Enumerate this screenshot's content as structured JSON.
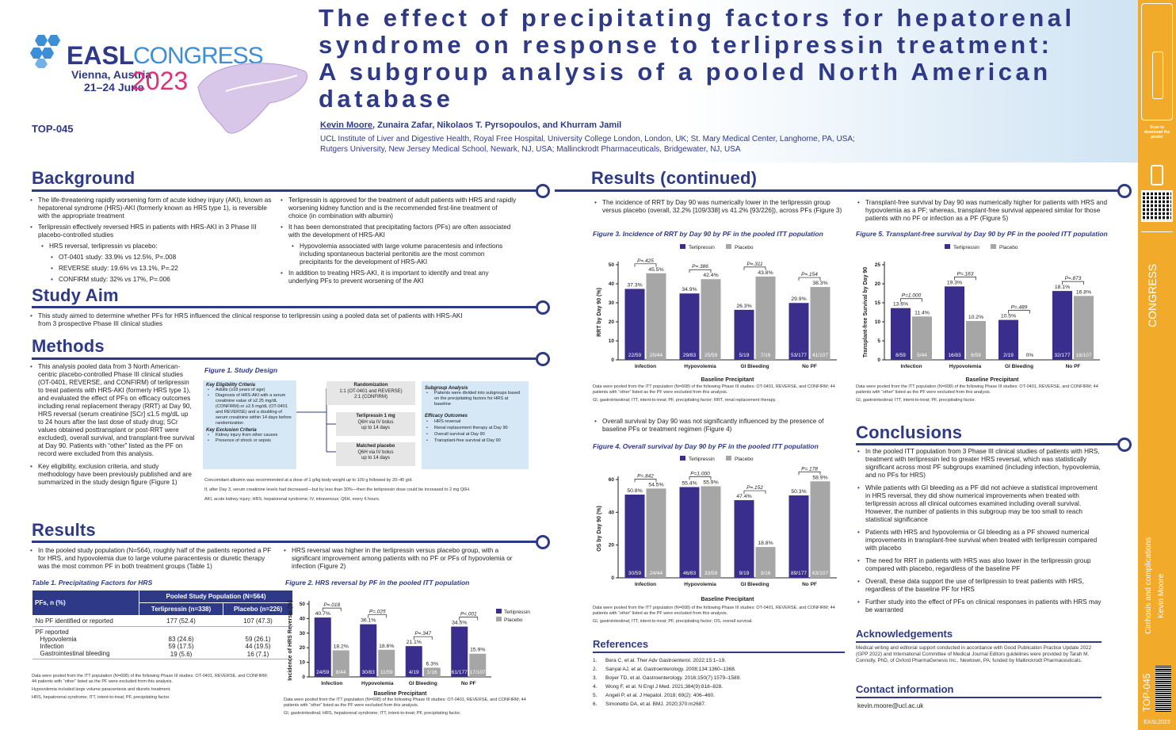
{
  "logo": {
    "brand": "EASL",
    "congress": "CONGRESS",
    "location": "Vienna, Austria",
    "dates": "21–24 June",
    "year": "2023"
  },
  "poster_id": "TOP-045",
  "title": "The effect of precipitating factors for hepatorenal syndrome on response to terlipressin treatment: A subgroup analysis of a pooled North American database",
  "authors": {
    "presenting": "Kevin Moore",
    "rest": ", Zunaira Zafar, Nikolaos T. Pyrsopoulos, and Khurram Jamil",
    "affil1": "UCL Institute of Liver and Digestive Health, Royal Free Hospital, University College London, London, UK; St. Mary Medical Center, Langhorne, PA, USA;",
    "affil2": "Rutgers University, New Jersey Medical School, Newark, NJ, USA; Mallinckrodt Pharmaceuticals, Bridgewater, NJ, USA"
  },
  "sections": {
    "background": "Background",
    "study_aim": "Study Aim",
    "methods": "Methods",
    "results": "Results",
    "results_cont": "Results (continued)",
    "conclusions": "Conclusions",
    "references": "References",
    "acknowledgements": "Acknowledgements",
    "contact": "Contact information"
  },
  "background": {
    "left": [
      "The life-threatening rapidly worsening form of acute kidney injury (AKI), known as hepatorenal syndrome (HRS)-AKI (formerly known as HRS type 1), is reversible with the appropriate treatment",
      "Terlipressin effectively reversed HRS in patients with HRS-AKI in 3 Phase III placebo-controlled studies",
      "HRS reversal, terlipressin vs placebo:",
      "OT-0401 study: 33.9% vs 12.5%, P=.008",
      "REVERSE study: 19.6% vs 13.1%, P=.22",
      "CONFIRM study: 32% vs 17%, P=.006"
    ],
    "right": [
      "Terlipressin is approved for the treatment of adult patients with HRS and rapidly worsening kidney function and is the recommended first-line treatment of choice (in combination with albumin)",
      "It has been demonstrated that precipitating factors (PFs) are often associated with the development of HRS-AKI",
      "Hypovolemia associated with large volume paracentesis and infections including spontaneous bacterial peritonitis are the most common precipitants for the development of HRS-AKI",
      "In addition to treating HRS-AKI, it is important to identify and treat any underlying PFs to prevent worsening of the AKI"
    ]
  },
  "study_aim": "This study aimed to determine whether PFs for HRS influenced the clinical response to terlipressin using a pooled data set of patients with HRS-AKI from 3 prospective Phase III clinical studies",
  "methods": {
    "bullets": [
      "This analysis pooled data from 3 North American-centric placebo-controlled Phase III clinical studies (OT-0401, REVERSE, and CONFIRM) of terlipressin to treat patients with HRS-AKI (formerly HRS type 1), and evaluated the effect of PFs on efficacy outcomes including renal replacement therapy (RRT) at Day 90, HRS reversal (serum creatinine [SCr] ≤1.5 mg/dL up to 24 hours after the last dose of study drug; SCr values obtained posttransplant or post-RRT were excluded), overall survival, and transplant-free survival at Day 90. Patients with “other” listed as the PF on record were excluded from this analysis.",
      "Key eligibility, exclusion criteria, and study methodology have been previously published and are summarized in the study design figure (Figure 1)"
    ],
    "fig1_cap": "Figure 1. Study Design",
    "key_elig_title": "Key Eligibility Criteria",
    "key_elig": [
      "Adults (≥18 years of age)",
      "Diagnosis of HRS-AKI with a serum creatinine value of ≥2.25 mg/dL (CONFIRM) or ≥2.5 mg/dL (OT-0401 and REVERSE) and a doubling of serum creatinine within 14 days before randomization"
    ],
    "key_excl_title": "Key Exclusion Criteria",
    "key_excl": [
      "Kidney injury from other causes",
      "Presence of shock or sepsis"
    ],
    "rand_title": "Randomization",
    "rand1": "1:1 (OT-0401 and REVERSE)",
    "rand2": "2:1 (CONFIRM)",
    "terli_box": [
      "Terlipressin 1 mg",
      "Q6H via IV bolus",
      "up to 14 days"
    ],
    "plac_box": [
      "Matched placebo",
      "Q6H via IV bolus",
      "up to 14 days"
    ],
    "subgroup_title": "Subgroup Analysis",
    "subgroup": [
      "Patients were divided into subgroups based on the precipitating factors for HRS at baseline"
    ],
    "efficacy_title": "Efficacy Outcomes",
    "efficacy": [
      "HRS reversal",
      "Renal replacement therapy at Day 90",
      "Overall survival at Day 90",
      "Transplant-free survival at Day 90"
    ],
    "notes": [
      "Concomitant albumin was recommended at a dose of 1 g/kg body weight up to 100 g followed by 20–40 g/d.",
      "If, after Day 3, serum creatinine levels had decreased—but by less than 30%—then the terlipressin dose could be increased to 2 mg Q6H.",
      "AKI, acute kidney injury; HRS, hepatorenal syndrome; IV, intravenous; Q6H, every 6 hours."
    ]
  },
  "results": {
    "left": [
      "In the pooled study population (N=564), roughly half of the patients reported a PF for HRS, and hypovolemia due to large volume paracentesis or diuretic therapy was the most common PF in both treatment groups (Table 1)"
    ],
    "right": [
      "HRS reversal was higher in the terlipressin versus placebo group, with a significant improvement among patients with no PF or PFs of hypovolemia or infection (Figure 2)"
    ],
    "table_cap": "Table 1. Precipitating Factors for HRS",
    "table": {
      "h_group": "Pooled Study Population (N=564)",
      "h_row": "PFs, n (%)",
      "h_t": "Terlipressin (n=338)",
      "h_p": "Placebo (n=226)",
      "rows": [
        {
          "label": "No PF identified or reported",
          "t": "177 (52.4)",
          "p": "107 (47.3)"
        },
        {
          "label": "PF reported",
          "t": "",
          "p": ""
        },
        {
          "label": "Hypovolemia",
          "t": "83 (24.6)",
          "p": "59 (26.1)"
        },
        {
          "label": "Infection",
          "t": "59 (17.5)",
          "p": "44 (19.5)"
        },
        {
          "label": "Gastrointestinal bleeding",
          "t": "19 (5.6)",
          "p": "16 (7.1)"
        }
      ]
    },
    "table_notes": [
      "Data were pooled from the ITT population (N=608) of the following Phase III studies: OT-0401, REVERSE, and CONFIRM; 44 patients with “other” listed as the PF were excluded from this analysis.",
      "Hypovolemia included large volume paracentesis and diuretic treatment.",
      "HRS, hepatorenal syndrome; ITT, intent-to-treat; PF, precipitating factor."
    ],
    "fig2_cap": "Figure 2. HRS reversal by PF in the pooled ITT population",
    "fig2_notes": [
      "Data were pooled from the ITT population (N=608) of the following Phase III studies: OT-0401, REVERSE, and CONFIRM; 44 patients with “other” listed as the PF were excluded from this analysis.",
      "GI, gastrointestinal; HRS, hepatorenal syndrome; ITT, intent-to-treat; PF, precipitating factor."
    ]
  },
  "results2": {
    "b3": "The incidence of RRT by Day 90 was numerically lower in the terlipressin group versus placebo (overall, 32.2% [109/338] vs 41.2% [93/226]), across PFs (Figure 3)",
    "fig3_cap": "Figure 3. Incidence of RRT by Day 90 by PF in the pooled ITT population",
    "fig3_notes": [
      "Data were pooled from the ITT population (N=608) of the following Phase III studies: OT-0401, REVERSE, and CONFIRM; 44 patients with “other” listed as the PF were excluded from this analysis.",
      "GI, gastrointestinal; ITT, intent-to-treat; PF, precipitating factor; RRT, renal replacement therapy."
    ],
    "b4": "Overall survival by Day 90 was not significantly influenced by the presence of baseline PFs or treatment regimen (Figure 4)",
    "fig4_cap": "Figure 4. Overall survival by Day 90 by PF in the pooled ITT population",
    "fig4_notes": [
      "Data were pooled from the ITT population (N=608) of the following Phase III studies: OT-0401, REVERSE, and CONFIRM; 44 patients with “other” listed as the PF were excluded from this analysis.",
      "GI, gastrointestinal; ITT, intent-to-treat; PF, precipitating factor; OS, overall survival."
    ],
    "b5": "Transplant-free survival by Day 90 was numerically higher for patients with HRS and hypovolemia as a PF; whereas, transplant-free survival appeared similar for those patients with no PF or infection as a PF (Figure 5)",
    "fig5_cap": "Figure 5. Transplant-free survival by Day 90 by PF in the pooled ITT population",
    "fig5_notes": [
      "Data were pooled from the ITT population (N=608) of the following Phase III studies: OT-0401, REVERSE, and CONFIRM; 44 patients with “other” listed as the PF were excluded from this analysis.",
      "GI, gastrointestinal; ITT, intent-to-treat; PF, precipitating factor."
    ]
  },
  "conclusions": [
    "In the pooled ITT population from 3 Phase III clinical studies of patients with HRS, treatment with terlipressin led to greater HRS reversal, which was statistically significant across most PF subgroups examined (including infection, hypovolemia, and no PFs for HRS)",
    "While patients with GI bleeding as a PF did not achieve a statistical improvement in HRS reversal, they did show numerical improvements when treated with terlipressin across all clinical outcomes examined including overall survival. However, the number of patients in this subgroup may be too small to reach statistical significance",
    "Patients with HRS and hypovolemia or GI bleeding as a PF showed numerical improvements in transplant-free survival when treated with terlipressin compared with placebo",
    "The need for RRT in patients with HRS was also lower in the terlipressin group compared with placebo, regardless of the baseline PF",
    "Overall, these data support the use of terlipressin to treat patients with HRS, regardless of the baseline PF for HRS",
    "Further study into the effect of PFs on clinical responses in patients with HRS may be warranted"
  ],
  "references": [
    "Bera C, et al. Ther Adv Gastroenterol. 2022;15:1–19.",
    "Sanyal AJ, et al. Gastroenterology. 2008;134:1360–1368.",
    "Boyer TD, et al. Gastroenterology. 2016;150(7):1579–1589.",
    "Wong F, et al. N Engl J Med. 2021;384(9):818–828.",
    "Angeli P, et al. J Hepatol. 2018; 69(2): 406–460.",
    "Simonetto DA, et al. BMJ. 2020;370:m2687."
  ],
  "acknowledgements": "Medical writing and editorial support conducted in accordance with Good Publication Practice Update 2022 (GPP 2022) and International Committee of Medical Journal Editors guidelines were provided by Tarah M. Connolly, PhD, of Oxford PharmaGenesis Inc., Newtown, PA; funded by Mallinckrodt Pharmaceuticals.",
  "contact": "kevin.moore@ucl.ac.uk",
  "sidebar": {
    "scan": "Scan to download the poster",
    "topic": "Cirrhosis and complications",
    "author": "Kevin Moore",
    "code": "TOP-045",
    "footer": "EASL2023"
  },
  "legend": {
    "t": "Terlipressin",
    "p": "Placebo"
  },
  "chart_data": [
    {
      "type": "bar",
      "title": "HRS reversal by PF",
      "xlabel": "Baseline Precipitant",
      "ylabel": "Incidence of HRS Reversal (%)",
      "ylim": [
        0,
        50
      ],
      "categories": [
        "Infection",
        "Hypovolemia",
        "GI Bleeding",
        "No PF"
      ],
      "series": [
        {
          "name": "Terlipressin",
          "values": [
            40.7,
            36.1,
            21.1,
            34.5
          ],
          "counts": [
            "24/59",
            "30/83",
            "4/19",
            "61/177"
          ]
        },
        {
          "name": "Placebo",
          "values": [
            18.2,
            18.6,
            6.3,
            15.9
          ],
          "counts": [
            "8/44",
            "11/59",
            "1/16",
            "17/107"
          ]
        }
      ],
      "pvalues": [
        "P=.018",
        "P=.025",
        "P=.347",
        "P<.001"
      ],
      "legend": "right"
    },
    {
      "type": "bar",
      "title": "Incidence of RRT by Day 90",
      "xlabel": "Baseline Precipitant",
      "ylabel": "RRT by Day 90 (%)",
      "ylim": [
        0,
        50
      ],
      "categories": [
        "Infection",
        "Hypovolemia",
        "GI Bleeding",
        "No PF"
      ],
      "series": [
        {
          "name": "Terlipressin",
          "values": [
            37.3,
            34.9,
            26.3,
            29.9
          ],
          "counts": [
            "22/59",
            "29/83",
            "5/19",
            "53/177"
          ]
        },
        {
          "name": "Placebo",
          "values": [
            45.5,
            42.4,
            43.8,
            38.3
          ],
          "counts": [
            "20/44",
            "25/59",
            "7/16",
            "41/107"
          ]
        }
      ],
      "pvalues": [
        "P=.425",
        "P=.386",
        "P=.311",
        "P=.154"
      ],
      "legend": "top"
    },
    {
      "type": "bar",
      "title": "Overall survival by Day 90",
      "xlabel": "Baseline Precipitant",
      "ylabel": "OS by Day 90  (%)",
      "ylim": [
        0,
        60
      ],
      "categories": [
        "Infection",
        "Hypovolemia",
        "GI Bleeding",
        "No PF"
      ],
      "series": [
        {
          "name": "Terlipressin",
          "values": [
            50.8,
            55.4,
            47.4,
            50.3
          ],
          "counts": [
            "30/59",
            "46/83",
            "9/19",
            "89/177"
          ]
        },
        {
          "name": "Placebo",
          "values": [
            54.5,
            55.9,
            18.8,
            58.9
          ],
          "counts": [
            "24/44",
            "33/59",
            "3/16",
            "63/107"
          ]
        }
      ],
      "pvalues": [
        "P=.842",
        "P=1.000",
        "P=.152",
        "P=.178"
      ],
      "legend": "top"
    },
    {
      "type": "bar",
      "title": "Transplant-free survival by Day 90",
      "xlabel": "Baseline Precipitant",
      "ylabel": "Transplant-free Survival by Day 90",
      "ylim": [
        0,
        25
      ],
      "categories": [
        "Infection",
        "Hypovolemia",
        "GI Bleeding",
        "No PF"
      ],
      "series": [
        {
          "name": "Terlipressin",
          "values": [
            13.6,
            19.3,
            10.5,
            18.1
          ],
          "counts": [
            "8/59",
            "16/83",
            "2/19",
            "32/177"
          ]
        },
        {
          "name": "Placebo",
          "values": [
            11.4,
            10.2,
            0,
            16.8
          ],
          "counts": [
            "5/44",
            "6/59",
            "0%",
            "18/107"
          ]
        }
      ],
      "pvalues": [
        "P=1.000",
        "P=.163",
        "P=.489",
        "P=.873"
      ],
      "legend": "top"
    }
  ]
}
